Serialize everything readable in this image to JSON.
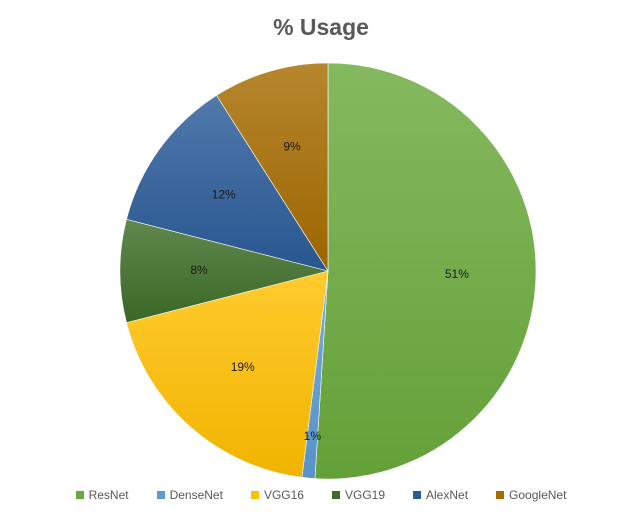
{
  "chart_data": {
    "type": "pie",
    "title": "% Usage",
    "legend_position": "bottom",
    "slices": [
      {
        "name": "ResNet",
        "value": 51,
        "label": "51%",
        "color": "#6aaa3c"
      },
      {
        "name": "DenseNet",
        "value": 1,
        "label": "1%",
        "color": "#5b9bd5"
      },
      {
        "name": "VGG16",
        "value": 19,
        "label": "19%",
        "color": "#ffc000"
      },
      {
        "name": "VGG19",
        "value": 8,
        "label": "8%",
        "color": "#3e6e27"
      },
      {
        "name": "AlexNet",
        "value": 12,
        "label": "12%",
        "color": "#2b5c99"
      },
      {
        "name": "GoogleNet",
        "value": 9,
        "label": "9%",
        "color": "#a66c00"
      }
    ]
  }
}
